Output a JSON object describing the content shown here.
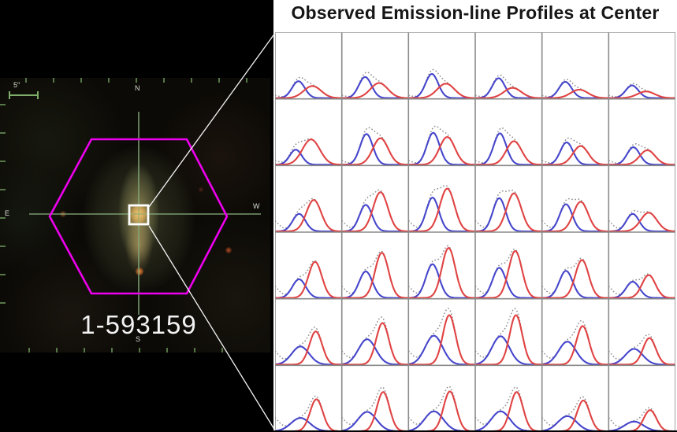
{
  "page": {
    "background": "#000000"
  },
  "galaxy_panel": {
    "label": "1-593159",
    "scale_bar_label": "5″",
    "compass": {
      "north": "N",
      "east": "E",
      "west": "W",
      "south": "S"
    },
    "colors": {
      "hexagon": "#ee00ee",
      "crosshair": "#82a878",
      "ticks": "#6f9a5f",
      "square_border": "#ffffff",
      "scale_bar": "#7fae6a",
      "id_text": "#f2f2f2"
    }
  },
  "connector": {
    "color": "#f5f5f5"
  },
  "chart_data": {
    "type": "line",
    "title": "Observed Emission-line Profiles at Center",
    "grid": {
      "rows": 6,
      "cols": 6,
      "line_color": "#8a8a8a",
      "background": "#ffffff"
    },
    "axes": {
      "x_ticks_visible": false,
      "y_ticks_visible": false,
      "x_range_per_panel": [
        0,
        1
      ],
      "y_range_per_panel": [
        0,
        1
      ]
    },
    "series_info": [
      {
        "name": "observed-profile",
        "style": "dotted",
        "color": "#8c8c8c"
      },
      {
        "name": "blueshifted-component",
        "style": "solid",
        "color": "#4646cc"
      },
      {
        "name": "redshifted-component",
        "style": "solid",
        "color": "#e04343"
      }
    ],
    "panel_model": "Each panel: observed = blue Gaussian + red Gaussian + left-edge tail Gaussian(center=-0.05, sigma=0.10, amp=tail_amp); centers/sigmas in panel-width fractions, amps in panel-height fractions",
    "panels": [
      {
        "row": 1,
        "col": 1,
        "blue": {
          "center": 0.35,
          "sigma": 0.095,
          "amp": 0.28
        },
        "red": {
          "center": 0.56,
          "sigma": 0.13,
          "amp": 0.2
        },
        "tail_amp": 0.05
      },
      {
        "row": 1,
        "col": 2,
        "blue": {
          "center": 0.35,
          "sigma": 0.095,
          "amp": 0.35
        },
        "red": {
          "center": 0.56,
          "sigma": 0.13,
          "amp": 0.25
        },
        "tail_amp": 0.05
      },
      {
        "row": 1,
        "col": 3,
        "blue": {
          "center": 0.35,
          "sigma": 0.095,
          "amp": 0.4
        },
        "red": {
          "center": 0.56,
          "sigma": 0.13,
          "amp": 0.24
        },
        "tail_amp": 0.05
      },
      {
        "row": 1,
        "col": 4,
        "blue": {
          "center": 0.35,
          "sigma": 0.095,
          "amp": 0.33
        },
        "red": {
          "center": 0.56,
          "sigma": 0.13,
          "amp": 0.17
        },
        "tail_amp": 0.05
      },
      {
        "row": 1,
        "col": 5,
        "blue": {
          "center": 0.35,
          "sigma": 0.095,
          "amp": 0.27
        },
        "red": {
          "center": 0.56,
          "sigma": 0.13,
          "amp": 0.14
        },
        "tail_amp": 0.05
      },
      {
        "row": 1,
        "col": 6,
        "blue": {
          "center": 0.35,
          "sigma": 0.095,
          "amp": 0.21
        },
        "red": {
          "center": 0.56,
          "sigma": 0.13,
          "amp": 0.11
        },
        "tail_amp": 0.05
      },
      {
        "row": 2,
        "col": 1,
        "blue": {
          "center": 0.31,
          "sigma": 0.09,
          "amp": 0.25
        },
        "red": {
          "center": 0.54,
          "sigma": 0.13,
          "amp": 0.42
        },
        "tail_amp": 0.08
      },
      {
        "row": 2,
        "col": 2,
        "blue": {
          "center": 0.37,
          "sigma": 0.095,
          "amp": 0.51
        },
        "red": {
          "center": 0.58,
          "sigma": 0.115,
          "amp": 0.44
        },
        "tail_amp": 0.08
      },
      {
        "row": 2,
        "col": 3,
        "blue": {
          "center": 0.37,
          "sigma": 0.095,
          "amp": 0.53
        },
        "red": {
          "center": 0.58,
          "sigma": 0.115,
          "amp": 0.46
        },
        "tail_amp": 0.08
      },
      {
        "row": 2,
        "col": 4,
        "blue": {
          "center": 0.37,
          "sigma": 0.095,
          "amp": 0.52
        },
        "red": {
          "center": 0.58,
          "sigma": 0.115,
          "amp": 0.39
        },
        "tail_amp": 0.08
      },
      {
        "row": 2,
        "col": 5,
        "blue": {
          "center": 0.37,
          "sigma": 0.095,
          "amp": 0.37
        },
        "red": {
          "center": 0.58,
          "sigma": 0.115,
          "amp": 0.31
        },
        "tail_amp": 0.08
      },
      {
        "row": 2,
        "col": 6,
        "blue": {
          "center": 0.37,
          "sigma": 0.095,
          "amp": 0.29
        },
        "red": {
          "center": 0.58,
          "sigma": 0.115,
          "amp": 0.24
        },
        "tail_amp": 0.08
      },
      {
        "row": 3,
        "col": 1,
        "blue": {
          "center": 0.36,
          "sigma": 0.095,
          "amp": 0.29
        },
        "red": {
          "center": 0.58,
          "sigma": 0.11,
          "amp": 0.52
        },
        "tail_amp": 0.2
      },
      {
        "row": 3,
        "col": 2,
        "blue": {
          "center": 0.36,
          "sigma": 0.095,
          "amp": 0.44
        },
        "red": {
          "center": 0.58,
          "sigma": 0.11,
          "amp": 0.65
        },
        "tail_amp": 0.2
      },
      {
        "row": 3,
        "col": 3,
        "blue": {
          "center": 0.36,
          "sigma": 0.095,
          "amp": 0.56
        },
        "red": {
          "center": 0.58,
          "sigma": 0.11,
          "amp": 0.71
        },
        "tail_amp": 0.2
      },
      {
        "row": 3,
        "col": 4,
        "blue": {
          "center": 0.36,
          "sigma": 0.095,
          "amp": 0.55
        },
        "red": {
          "center": 0.58,
          "sigma": 0.11,
          "amp": 0.63
        },
        "tail_amp": 0.2
      },
      {
        "row": 3,
        "col": 5,
        "blue": {
          "center": 0.36,
          "sigma": 0.095,
          "amp": 0.45
        },
        "red": {
          "center": 0.58,
          "sigma": 0.11,
          "amp": 0.49
        },
        "tail_amp": 0.2
      },
      {
        "row": 3,
        "col": 6,
        "blue": {
          "center": 0.36,
          "sigma": 0.095,
          "amp": 0.29
        },
        "red": {
          "center": 0.6,
          "sigma": 0.12,
          "amp": 0.31
        },
        "tail_amp": 0.2
      },
      {
        "row": 4,
        "col": 1,
        "blue": {
          "center": 0.36,
          "sigma": 0.1,
          "amp": 0.31
        },
        "red": {
          "center": 0.6,
          "sigma": 0.1,
          "amp": 0.6
        },
        "tail_amp": 0.22
      },
      {
        "row": 4,
        "col": 2,
        "blue": {
          "center": 0.36,
          "sigma": 0.1,
          "amp": 0.44
        },
        "red": {
          "center": 0.6,
          "sigma": 0.1,
          "amp": 0.75
        },
        "tail_amp": 0.22
      },
      {
        "row": 4,
        "col": 3,
        "blue": {
          "center": 0.36,
          "sigma": 0.1,
          "amp": 0.56
        },
        "red": {
          "center": 0.6,
          "sigma": 0.1,
          "amp": 0.83
        },
        "tail_amp": 0.22
      },
      {
        "row": 4,
        "col": 4,
        "blue": {
          "center": 0.36,
          "sigma": 0.1,
          "amp": 0.5
        },
        "red": {
          "center": 0.6,
          "sigma": 0.1,
          "amp": 0.78
        },
        "tail_amp": 0.22
      },
      {
        "row": 4,
        "col": 5,
        "blue": {
          "center": 0.36,
          "sigma": 0.1,
          "amp": 0.45
        },
        "red": {
          "center": 0.6,
          "sigma": 0.1,
          "amp": 0.63
        },
        "tail_amp": 0.22
      },
      {
        "row": 4,
        "col": 6,
        "blue": {
          "center": 0.36,
          "sigma": 0.1,
          "amp": 0.27
        },
        "red": {
          "center": 0.6,
          "sigma": 0.1,
          "amp": 0.38
        },
        "tail_amp": 0.22
      },
      {
        "row": 5,
        "col": 1,
        "blue": {
          "center": 0.38,
          "sigma": 0.13,
          "amp": 0.3
        },
        "red": {
          "center": 0.61,
          "sigma": 0.095,
          "amp": 0.55
        },
        "tail_amp": 0.25
      },
      {
        "row": 5,
        "col": 2,
        "blue": {
          "center": 0.38,
          "sigma": 0.13,
          "amp": 0.42
        },
        "red": {
          "center": 0.61,
          "sigma": 0.095,
          "amp": 0.69
        },
        "tail_amp": 0.25
      },
      {
        "row": 5,
        "col": 3,
        "blue": {
          "center": 0.38,
          "sigma": 0.13,
          "amp": 0.48
        },
        "red": {
          "center": 0.61,
          "sigma": 0.095,
          "amp": 0.82
        },
        "tail_amp": 0.25
      },
      {
        "row": 5,
        "col": 4,
        "blue": {
          "center": 0.38,
          "sigma": 0.13,
          "amp": 0.47
        },
        "red": {
          "center": 0.61,
          "sigma": 0.095,
          "amp": 0.82
        },
        "tail_amp": 0.25
      },
      {
        "row": 5,
        "col": 5,
        "blue": {
          "center": 0.38,
          "sigma": 0.13,
          "amp": 0.38
        },
        "red": {
          "center": 0.61,
          "sigma": 0.095,
          "amp": 0.64
        },
        "tail_amp": 0.25
      },
      {
        "row": 5,
        "col": 6,
        "blue": {
          "center": 0.38,
          "sigma": 0.13,
          "amp": 0.26
        },
        "red": {
          "center": 0.61,
          "sigma": 0.095,
          "amp": 0.44
        },
        "tail_amp": 0.25
      },
      {
        "row": 6,
        "col": 1,
        "blue": {
          "center": 0.38,
          "sigma": 0.14,
          "amp": 0.22
        },
        "red": {
          "center": 0.62,
          "sigma": 0.095,
          "amp": 0.53
        },
        "tail_amp": 0.25
      },
      {
        "row": 6,
        "col": 2,
        "blue": {
          "center": 0.38,
          "sigma": 0.14,
          "amp": 0.32
        },
        "red": {
          "center": 0.62,
          "sigma": 0.095,
          "amp": 0.65
        },
        "tail_amp": 0.25
      },
      {
        "row": 6,
        "col": 3,
        "blue": {
          "center": 0.38,
          "sigma": 0.14,
          "amp": 0.33
        },
        "red": {
          "center": 0.62,
          "sigma": 0.095,
          "amp": 0.66
        },
        "tail_amp": 0.25
      },
      {
        "row": 6,
        "col": 4,
        "blue": {
          "center": 0.38,
          "sigma": 0.14,
          "amp": 0.33
        },
        "red": {
          "center": 0.62,
          "sigma": 0.095,
          "amp": 0.65
        },
        "tail_amp": 0.25
      },
      {
        "row": 6,
        "col": 5,
        "blue": {
          "center": 0.38,
          "sigma": 0.14,
          "amp": 0.25
        },
        "red": {
          "center": 0.62,
          "sigma": 0.095,
          "amp": 0.51
        },
        "tail_amp": 0.25
      },
      {
        "row": 6,
        "col": 6,
        "blue": {
          "center": 0.38,
          "sigma": 0.14,
          "amp": 0.16
        },
        "red": {
          "center": 0.62,
          "sigma": 0.095,
          "amp": 0.35
        },
        "tail_amp": 0.25
      }
    ]
  }
}
